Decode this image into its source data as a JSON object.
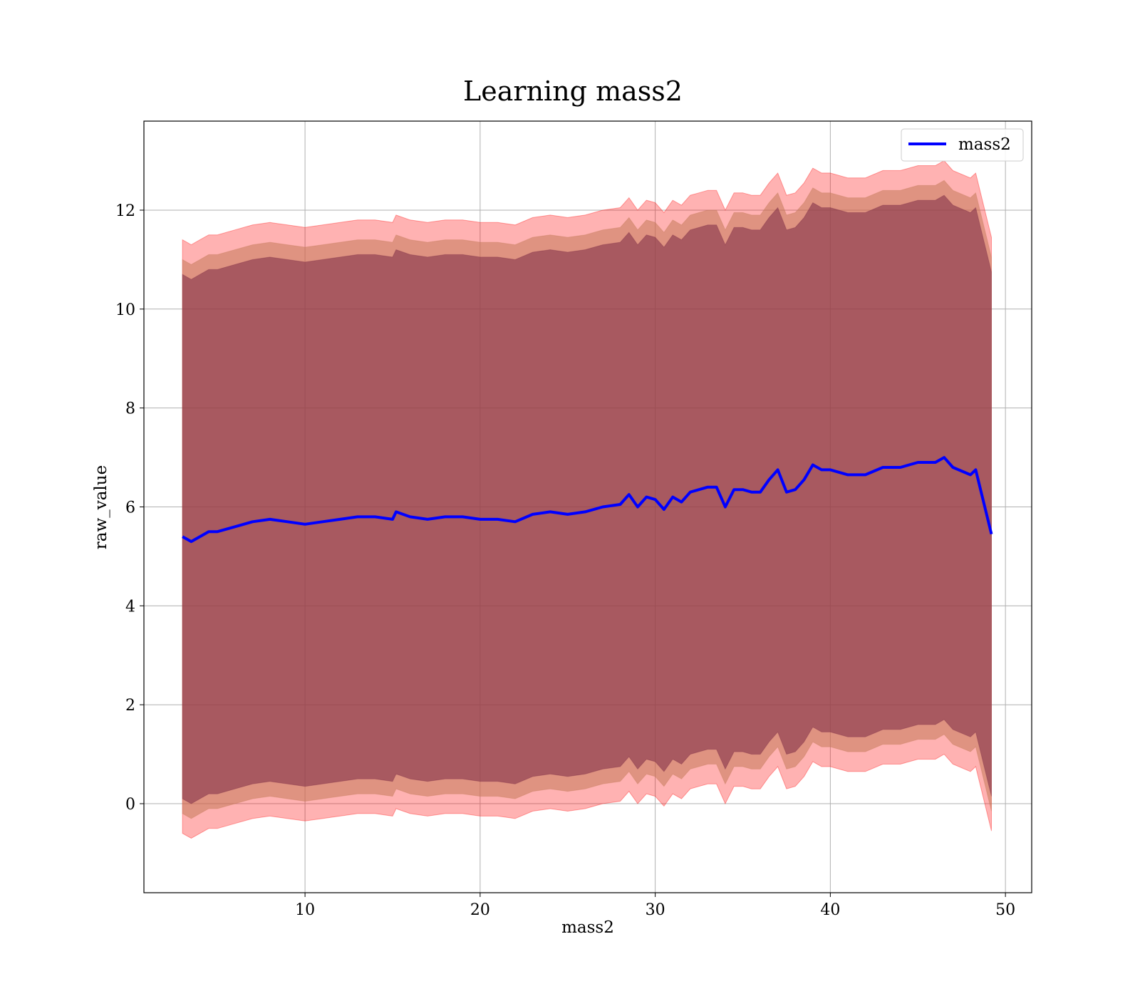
{
  "chart_data": {
    "type": "line",
    "title": "Learning mass2",
    "xlabel": "mass2",
    "ylabel": "raw_value",
    "xlim": [
      0.8,
      51.5
    ],
    "ylim": [
      -1.8,
      13.8
    ],
    "xticks": [
      10,
      20,
      30,
      40,
      50
    ],
    "yticks": [
      0,
      2,
      4,
      6,
      8,
      10,
      12
    ],
    "grid": true,
    "legend": {
      "position": "upper-right",
      "entries": [
        "mass2"
      ]
    },
    "colors": {
      "line": "#0000ff",
      "band_outer": "#ff0000",
      "band_middle": "#c47a5a",
      "band_inner": "#7a2a45",
      "grid": "#b0b0b0"
    },
    "series": [
      {
        "name": "mass2",
        "x": [
          3.0,
          3.5,
          4.0,
          4.5,
          5.0,
          6.0,
          7.0,
          8.0,
          9.0,
          10.0,
          11.0,
          12.0,
          13.0,
          14.0,
          15.0,
          15.2,
          16.0,
          17.0,
          18.0,
          19.0,
          20.0,
          21.0,
          22.0,
          23.0,
          24.0,
          25.0,
          26.0,
          27.0,
          28.0,
          28.5,
          29.0,
          29.5,
          30.0,
          30.5,
          31.0,
          31.5,
          32.0,
          32.5,
          33.0,
          33.5,
          34.0,
          34.5,
          35.0,
          35.5,
          36.0,
          36.5,
          37.0,
          37.5,
          38.0,
          38.5,
          39.0,
          39.5,
          40.0,
          41.0,
          42.0,
          43.0,
          44.0,
          45.0,
          46.0,
          46.5,
          47.0,
          48.0,
          48.3,
          49.2
        ],
        "y": [
          5.4,
          5.3,
          5.4,
          5.5,
          5.5,
          5.6,
          5.7,
          5.75,
          5.7,
          5.65,
          5.7,
          5.75,
          5.8,
          5.8,
          5.75,
          5.9,
          5.8,
          5.75,
          5.8,
          5.8,
          5.75,
          5.75,
          5.7,
          5.85,
          5.9,
          5.85,
          5.9,
          6.0,
          6.05,
          6.25,
          6.0,
          6.2,
          6.15,
          5.95,
          6.2,
          6.1,
          6.3,
          6.35,
          6.4,
          6.4,
          6.0,
          6.35,
          6.35,
          6.3,
          6.3,
          6.55,
          6.75,
          6.3,
          6.35,
          6.55,
          6.85,
          6.75,
          6.75,
          6.65,
          6.65,
          6.8,
          6.8,
          6.9,
          6.9,
          7.0,
          6.8,
          6.65,
          6.75,
          5.45
        ]
      }
    ],
    "bands": [
      {
        "level": "outer",
        "lower_offset": -6.0,
        "upper_offset": 6.0
      },
      {
        "level": "middle",
        "lower_offset": -5.6,
        "upper_offset": 5.6
      },
      {
        "level": "inner",
        "lower_offset": -5.3,
        "upper_offset": 5.3
      }
    ]
  }
}
